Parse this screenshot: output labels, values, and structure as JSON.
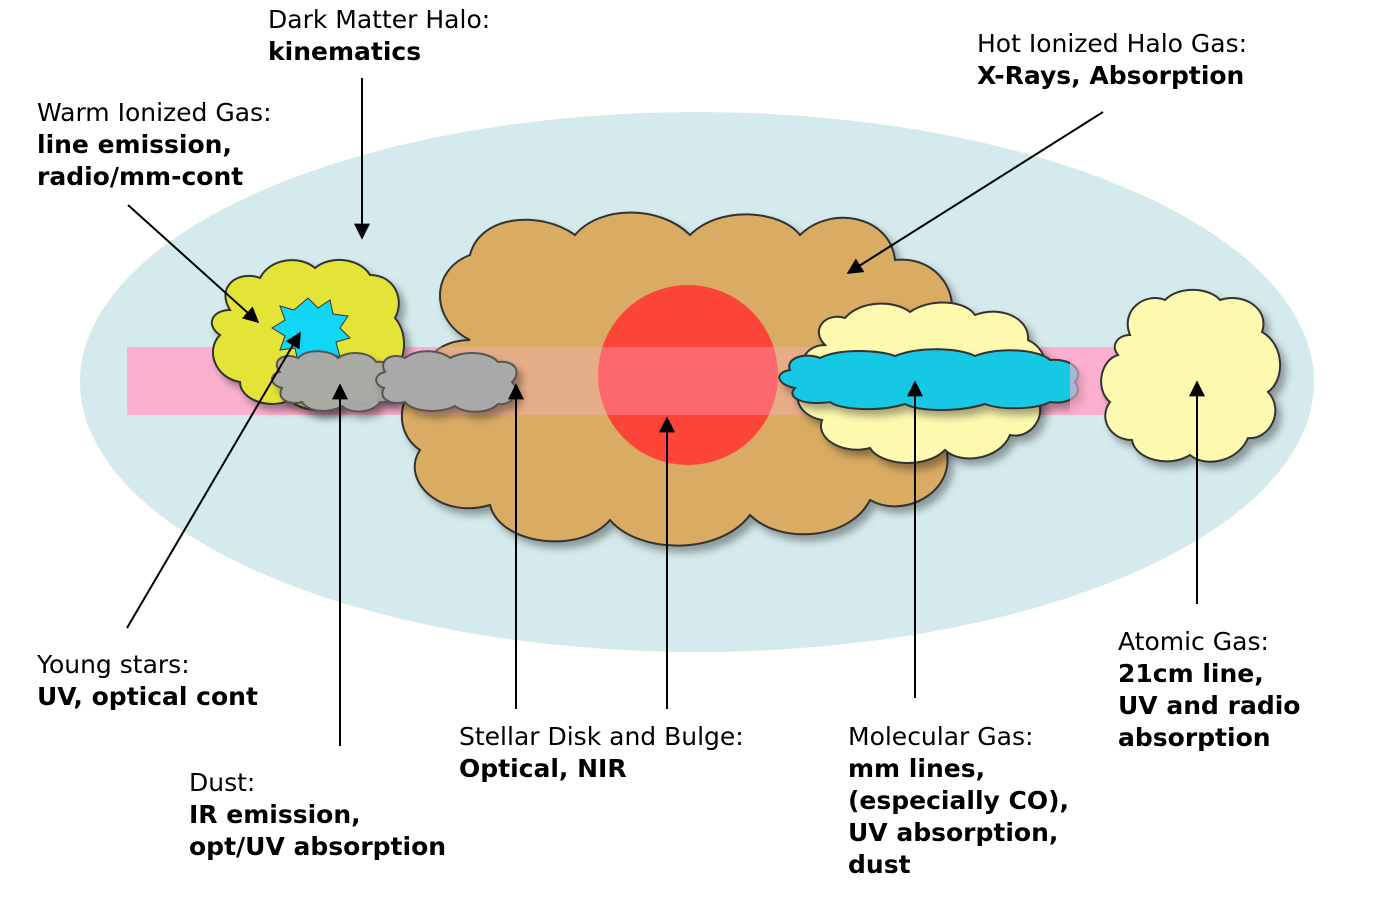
{
  "colors": {
    "halo": "#d5eaec",
    "disk_band": "#fcb0cf",
    "bulge_cloud": "#d9ab63",
    "bulge_core": "#fc4438",
    "warm_gas": "#e4e437",
    "star": "#11d6f6",
    "dust": "#a9a9a9",
    "molecular_outer": "#fdfaaf",
    "molecular_inner": "#17c8e4",
    "atomic": "#fdfab0",
    "outline": "#333333",
    "arrow": "#000000"
  },
  "labels": {
    "dark_matter": {
      "title": "Dark Matter Halo:",
      "bold": [
        "kinematics"
      ]
    },
    "warm_ionized": {
      "title": "Warm Ionized Gas:",
      "bold": [
        "line emission,",
        "radio/mm-cont"
      ]
    },
    "hot_ionized": {
      "title": "Hot Ionized Halo Gas:",
      "bold": [
        "X-Rays, Absorption"
      ]
    },
    "young_stars": {
      "title": "Young stars:",
      "bold": [
        "UV, optical cont"
      ]
    },
    "dust": {
      "title": "Dust:",
      "bold": [
        "IR emission,",
        "opt/UV absorption"
      ]
    },
    "stellar": {
      "title": "Stellar Disk and Bulge:",
      "bold": [
        "Optical, NIR"
      ]
    },
    "molecular": {
      "title": "Molecular Gas:",
      "bold": [
        "mm lines,",
        "(especially CO),",
        "UV absorption,",
        "dust"
      ]
    },
    "atomic": {
      "title": "Atomic Gas:",
      "bold": [
        "21cm line,",
        "UV and radio",
        "absorption"
      ]
    }
  }
}
